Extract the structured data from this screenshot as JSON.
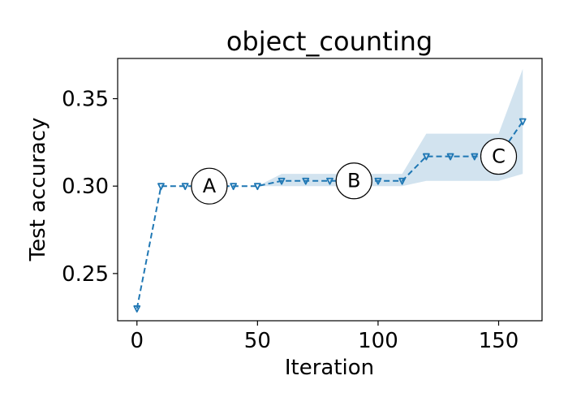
{
  "chart_data": {
    "type": "line",
    "title": "object_counting",
    "xlabel": "Iteration",
    "ylabel": "Test accuracy",
    "xlim": [
      -8,
      168
    ],
    "ylim": [
      0.223,
      0.373
    ],
    "xticks": [
      0,
      50,
      100,
      150
    ],
    "yticks": [
      0.25,
      0.3,
      0.35
    ],
    "ytick_labels": [
      "0.25",
      "0.30",
      "0.35"
    ],
    "grid": false,
    "legend": "none",
    "colors": {
      "line": "#1f77b4",
      "band": "#a6c8e0"
    },
    "series": [
      {
        "x": [
          0,
          10,
          20,
          30,
          40,
          50,
          60,
          70,
          80,
          90,
          100,
          110,
          120,
          130,
          140,
          150,
          160
        ],
        "y": [
          0.23,
          0.3,
          0.3,
          0.3,
          0.3,
          0.3,
          0.303,
          0.303,
          0.303,
          0.303,
          0.303,
          0.303,
          0.317,
          0.317,
          0.317,
          0.317,
          0.337
        ],
        "lower": [
          0.23,
          0.3,
          0.3,
          0.3,
          0.3,
          0.3,
          0.3,
          0.3,
          0.3,
          0.3,
          0.3,
          0.3,
          0.303,
          0.303,
          0.303,
          0.303,
          0.307
        ],
        "upper": [
          0.23,
          0.3,
          0.3,
          0.3,
          0.3,
          0.3,
          0.307,
          0.307,
          0.307,
          0.307,
          0.307,
          0.307,
          0.33,
          0.33,
          0.33,
          0.33,
          0.367
        ]
      }
    ],
    "annotations": [
      {
        "label": "A",
        "x": 30,
        "y": 0.3
      },
      {
        "label": "B",
        "x": 90,
        "y": 0.303
      },
      {
        "label": "C",
        "x": 150,
        "y": 0.317
      }
    ]
  }
}
